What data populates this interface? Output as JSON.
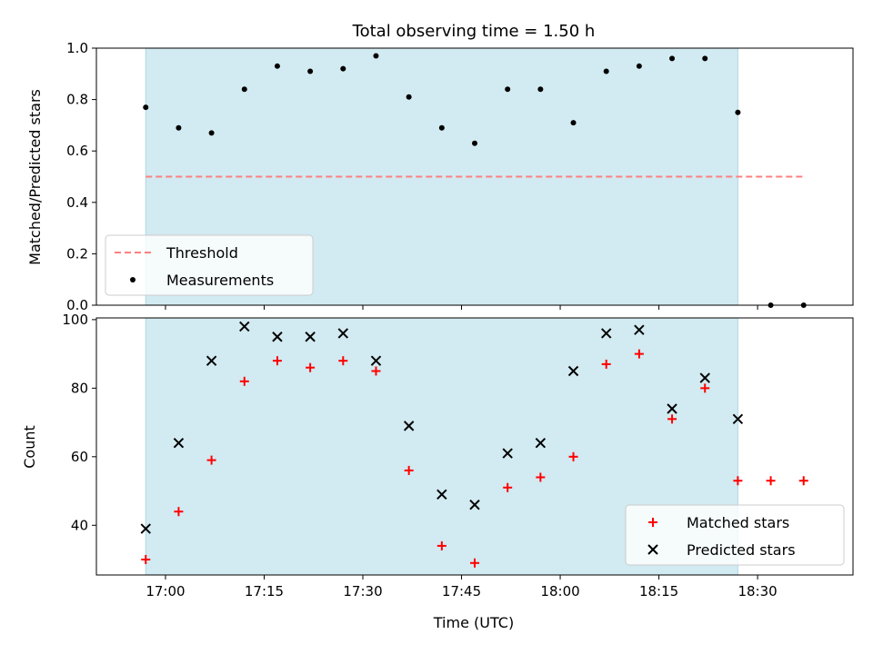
{
  "chart_data": {
    "type": "scatter",
    "title": "Total observing time = 1.50 h",
    "xlabel": "Time (UTC)",
    "x_ticks": [
      "17:00",
      "17:15",
      "17:30",
      "17:45",
      "18:00",
      "18:15",
      "18:30"
    ],
    "times": [
      "16:57",
      "17:02",
      "17:07",
      "17:12",
      "17:17",
      "17:22",
      "17:27",
      "17:32",
      "17:37",
      "17:42",
      "17:47",
      "17:52",
      "17:57",
      "18:02",
      "18:07",
      "18:12",
      "18:17",
      "18:22",
      "18:27",
      "18:32",
      "18:37"
    ],
    "observing_window": [
      "16:57",
      "18:27"
    ],
    "shade_color": "#add8e6",
    "panels": [
      {
        "ylabel": "Matched/Predicted stars",
        "ylim": [
          0,
          1.0
        ],
        "y_ticks": [
          "0.0",
          "0.2",
          "0.4",
          "0.6",
          "0.8",
          "1.0"
        ],
        "series": [
          {
            "name": "Threshold",
            "type": "line",
            "style": "dashed",
            "color": "#ff7f7f",
            "value": 0.5,
            "x_range": [
              "16:57",
              "18:37"
            ]
          },
          {
            "name": "Measurements",
            "type": "scatter",
            "marker": "dot",
            "color": "#000000",
            "values": [
              0.77,
              0.69,
              0.67,
              0.84,
              0.93,
              0.91,
              0.92,
              0.97,
              0.81,
              0.69,
              0.63,
              0.84,
              0.84,
              0.71,
              0.91,
              0.93,
              0.96,
              0.96,
              0.75,
              0.0,
              0.0
            ]
          }
        ],
        "legend_position": "lower-left"
      },
      {
        "ylabel": "Count",
        "ylim": [
          25.5,
          100.5
        ],
        "y_ticks": [
          "40",
          "60",
          "80",
          "100"
        ],
        "series": [
          {
            "name": "Matched stars",
            "type": "scatter",
            "marker": "plus",
            "color": "#ff0000",
            "values": [
              30,
              44,
              59,
              82,
              88,
              86,
              88,
              85,
              56,
              34,
              29,
              51,
              54,
              60,
              87,
              90,
              71,
              80,
              53,
              53,
              53
            ]
          },
          {
            "name": "Predicted stars",
            "type": "scatter",
            "marker": "x",
            "color": "#000000",
            "values": [
              39,
              64,
              88,
              98,
              95,
              95,
              96,
              88,
              69,
              49,
              46,
              61,
              64,
              85,
              96,
              97,
              74,
              83,
              71,
              null,
              null
            ]
          }
        ],
        "legend_position": "lower-right"
      }
    ]
  }
}
